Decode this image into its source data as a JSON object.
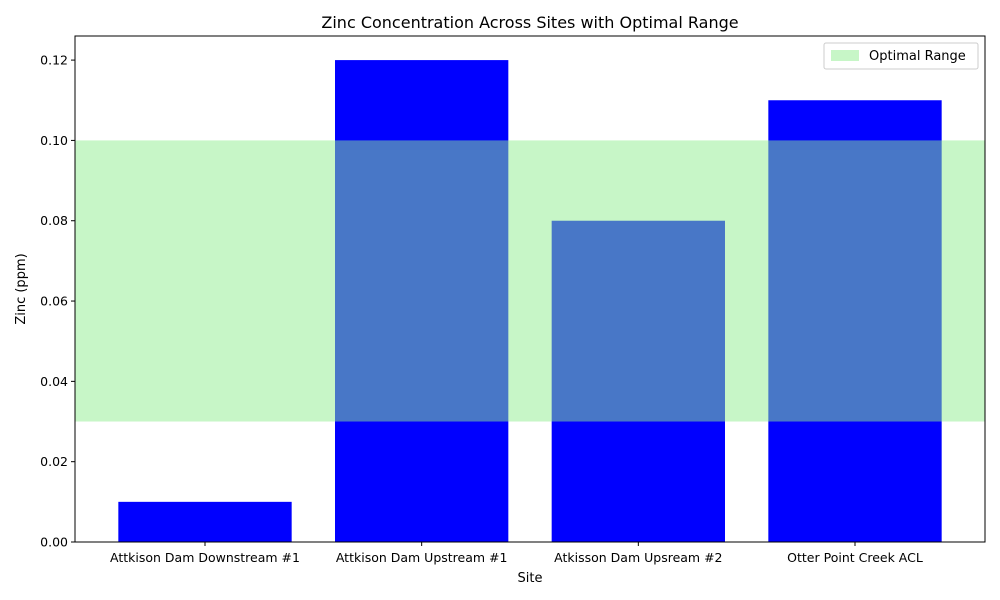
{
  "chart_data": {
    "type": "bar",
    "title": "Zinc Concentration Across Sites with Optimal Range",
    "xlabel": "Site",
    "ylabel": "Zinc (ppm)",
    "categories": [
      "Attkison Dam Downstream #1",
      "Attkison Dam Upstream #1",
      "Atkisson Dam Upsream #2",
      "Otter Point Creek ACL"
    ],
    "values": [
      0.01,
      0.12,
      0.08,
      0.11
    ],
    "ylim": [
      0,
      0.126
    ],
    "yticks": [
      "0.00",
      "0.02",
      "0.04",
      "0.06",
      "0.08",
      "0.10",
      "0.12"
    ],
    "bar_color": "#0000ff",
    "optimal_range": {
      "label": "Optimal Range",
      "min": 0.03,
      "max": 0.1,
      "color": "#90ee90"
    },
    "legend_position": "top-right",
    "grid": false
  }
}
